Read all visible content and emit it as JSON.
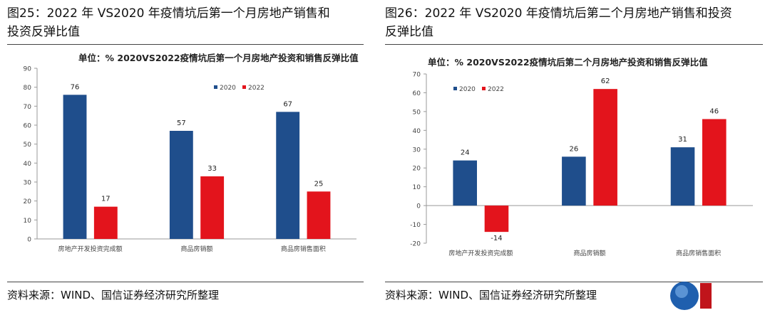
{
  "figures": [
    {
      "title_line1": "图25：2022 年 VS2020 年疫情坑后第一个月房地产销售和",
      "title_line2": "投资反弹比值",
      "source": "资料来源：WIND、国信证券经济研究所整理"
    },
    {
      "title_line1": "图26：2022 年 VS2020 年疫情坑后第二个月房地产销售和投资",
      "title_line2": "反弹比值",
      "source": "资料来源：WIND、国信证券经济研究所整理"
    }
  ],
  "colors": {
    "series_2020": "#1f4e8c",
    "series_2022": "#e3141c",
    "axis": "#999999",
    "text": "#333333"
  },
  "chart_data": [
    {
      "type": "bar",
      "title": "单位：% 2020VS2022疫情坑后第一个月房地产投资和销售反弹比值",
      "categories": [
        "房地产开发投资完成额",
        "商品房销额",
        "商品房销售面积"
      ],
      "series": [
        {
          "name": "2020",
          "values": [
            76,
            57,
            67
          ]
        },
        {
          "name": "2022",
          "values": [
            17,
            33,
            25
          ]
        }
      ],
      "ylim": [
        0,
        90
      ],
      "yticks": [
        "0",
        "10",
        "20",
        "30",
        "40",
        "50",
        "60",
        "70",
        "80",
        "90"
      ],
      "legend": "top-right",
      "grid": false
    },
    {
      "type": "bar",
      "title": "单位：% 2020VS2022疫情坑后第二个月房地产投资和销售反弹比值",
      "categories": [
        "房地产开发投资完成额",
        "商品房销额",
        "商品房销售面积"
      ],
      "series": [
        {
          "name": "2020",
          "values": [
            24,
            26,
            31
          ]
        },
        {
          "name": "2022",
          "values": [
            -14,
            62,
            46
          ]
        }
      ],
      "ylim": [
        -20,
        70
      ],
      "yticks": [
        "-20",
        "-10",
        "0",
        "10",
        "20",
        "30",
        "40",
        "50",
        "60",
        "70"
      ],
      "legend": "top-left",
      "grid": false
    }
  ]
}
